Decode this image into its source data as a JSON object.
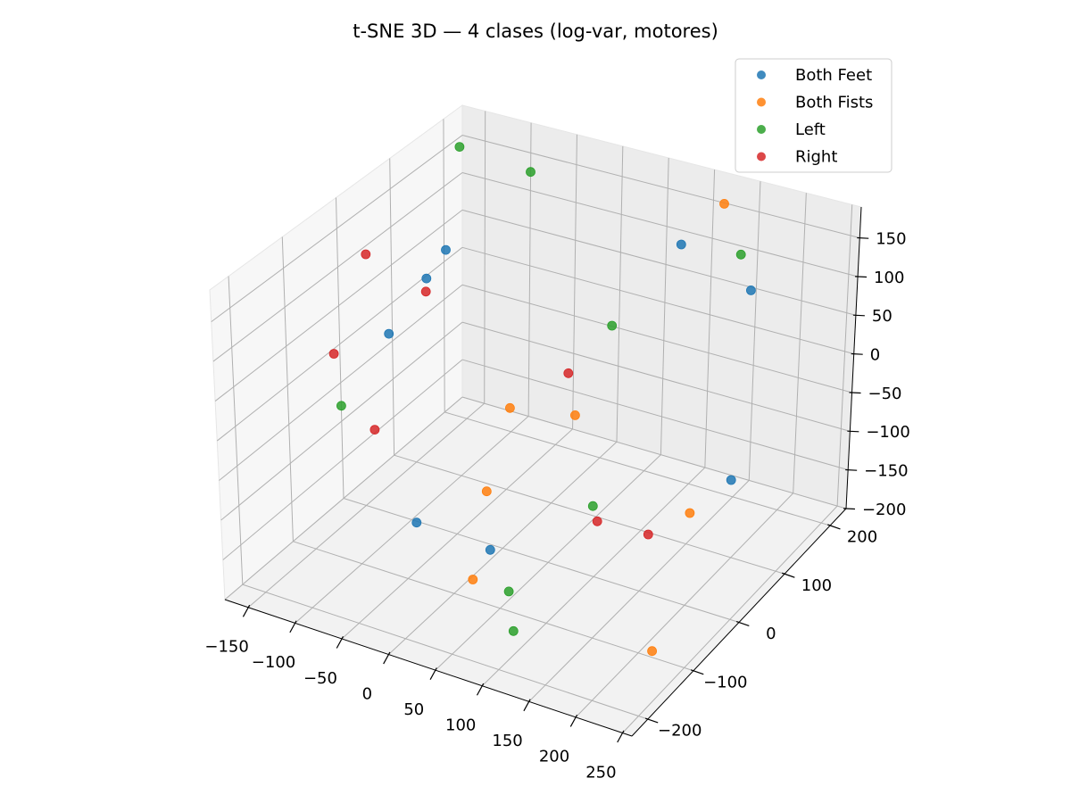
{
  "chart_data": {
    "type": "scatter",
    "projection": "3d",
    "title": "t-SNE 3D — 4 clases (log-var, motores)",
    "xlabel": "",
    "ylabel": "",
    "zlabel": "",
    "xlim": [
      -175,
      260
    ],
    "ylim": [
      -235,
      235
    ],
    "zlim": [
      -200,
      190
    ],
    "xticks": [
      -150,
      -100,
      -50,
      0,
      50,
      100,
      150,
      200,
      250
    ],
    "xtick_labels": [
      "−150",
      "−100",
      "−50",
      "0",
      "50",
      "100",
      "150",
      "200",
      "250"
    ],
    "yticks": [
      -200,
      -100,
      0,
      100,
      200
    ],
    "ytick_labels": [
      "−200",
      "−100",
      "0",
      "100",
      "200"
    ],
    "zticks": [
      -200,
      -150,
      -100,
      -50,
      0,
      50,
      100,
      150
    ],
    "ztick_labels": [
      "−200",
      "−150",
      "−100",
      "−50",
      "0",
      "50",
      "100",
      "150"
    ],
    "grid": true,
    "legend_position": "top-right",
    "series": [
      {
        "name": "Both Feet",
        "color": "#1f77b4",
        "points": [
          {
            "x": -115,
            "y": -10,
            "z": 40
          },
          {
            "x": -125,
            "y": 80,
            "z": 60
          },
          {
            "x": -115,
            "y": 100,
            "z": 90
          },
          {
            "x": -50,
            "y": -80,
            "z": -140
          },
          {
            "x": 30,
            "y": -80,
            "z": -145
          },
          {
            "x": 80,
            "y": 210,
            "z": 100
          },
          {
            "x": 190,
            "y": 150,
            "z": 110
          },
          {
            "x": 220,
            "y": 60,
            "z": -70
          }
        ]
      },
      {
        "name": "Both Fists",
        "color": "#ff7f0e",
        "points": [
          {
            "x": -40,
            "y": 90,
            "z": -85
          },
          {
            "x": 10,
            "y": 130,
            "z": -100
          },
          {
            "x": 0,
            "y": -30,
            "z": -110
          },
          {
            "x": 10,
            "y": -80,
            "z": -190
          },
          {
            "x": 180,
            "y": 50,
            "z": -120
          },
          {
            "x": 210,
            "y": -90,
            "z": -200
          },
          {
            "x": 120,
            "y": 220,
            "z": 160
          }
        ]
      },
      {
        "name": "Left",
        "color": "#2ca02c",
        "points": [
          {
            "x": -140,
            "y": 170,
            "z": 180
          },
          {
            "x": -80,
            "y": 200,
            "z": 150
          },
          {
            "x": 50,
            "y": 130,
            "z": 30
          },
          {
            "x": 140,
            "y": 220,
            "z": 100
          },
          {
            "x": -175,
            "y": 0,
            "z": -80
          },
          {
            "x": 100,
            "y": 0,
            "z": -110
          },
          {
            "x": 60,
            "y": -100,
            "z": -175
          },
          {
            "x": 80,
            "y": -130,
            "z": -200
          }
        ]
      },
      {
        "name": "Right",
        "color": "#d62728",
        "points": [
          {
            "x": -150,
            "y": 10,
            "z": 120
          },
          {
            "x": -120,
            "y": 70,
            "z": 50
          },
          {
            "x": -170,
            "y": -20,
            "z": 0
          },
          {
            "x": -110,
            "y": -50,
            "z": -60
          },
          {
            "x": 30,
            "y": 80,
            "z": -10
          },
          {
            "x": 110,
            "y": -10,
            "z": -120
          },
          {
            "x": 150,
            "y": 20,
            "z": -140
          }
        ]
      }
    ]
  }
}
